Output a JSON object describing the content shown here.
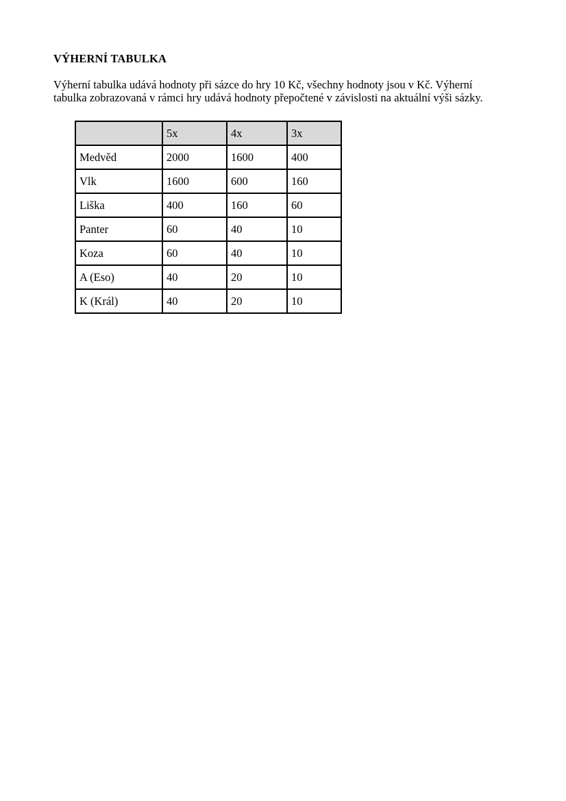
{
  "document": {
    "title": "VÝHERNÍ TABULKA",
    "intro_lines": [
      "Výherní tabulka udává hodnoty při sázce do hry 10 Kč, všechny hodnoty jsou v Kč. Výherní",
      "tabulka zobrazovaná v rámci hry udává hodnoty přepočtené v závislosti na aktuální výši sázky."
    ]
  },
  "table": {
    "header_bg": "#d9d9d9",
    "border_color": "#000000",
    "columns": [
      "",
      "5x",
      "4x",
      "3x"
    ],
    "rows": [
      {
        "label": "Medvěd",
        "values": [
          "2000",
          "1600",
          "400"
        ]
      },
      {
        "label": "Vlk",
        "values": [
          "1600",
          "600",
          "160"
        ]
      },
      {
        "label": "Liška",
        "values": [
          "400",
          "160",
          "60"
        ]
      },
      {
        "label": "Panter",
        "values": [
          "60",
          "40",
          "10"
        ]
      },
      {
        "label": "Koza",
        "values": [
          "60",
          "40",
          "10"
        ]
      },
      {
        "label": "A (Eso)",
        "values": [
          "40",
          "20",
          "10"
        ]
      },
      {
        "label": "K (Král)",
        "values": [
          "40",
          "20",
          "10"
        ]
      }
    ]
  }
}
